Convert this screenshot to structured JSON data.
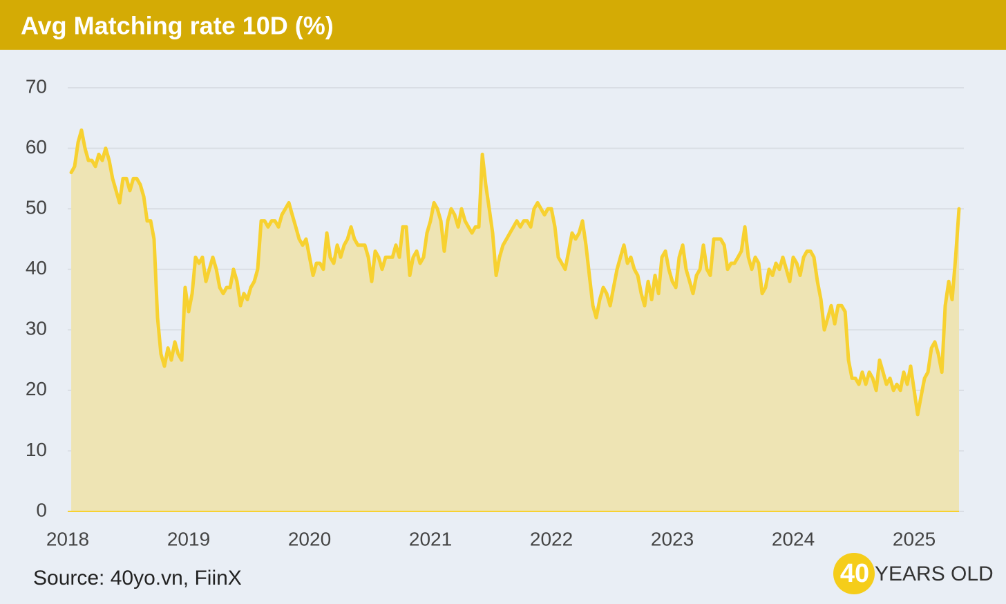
{
  "chart_data": {
    "type": "area",
    "title": "Avg Matching rate 10D (%)",
    "source": "Source: 40yo.vn, FiinX",
    "logo": {
      "number": "40",
      "text": "YEARS OLD"
    },
    "color": "#f7d130",
    "fill_color": "#eee4b4",
    "grid": true,
    "xlim": [
      2018,
      2025.371
    ],
    "xticks": [
      2018,
      2019,
      2020,
      2021,
      2022,
      2023,
      2024,
      2025
    ],
    "ylim": [
      0,
      70
    ],
    "yticks": [
      0,
      10,
      20,
      30,
      40,
      50,
      60,
      70
    ],
    "x": [
      2018.029,
      2018.057,
      2018.086,
      2018.114,
      2018.143,
      2018.171,
      2018.2,
      2018.229,
      2018.257,
      2018.286,
      2018.314,
      2018.343,
      2018.371,
      2018.4,
      2018.429,
      2018.457,
      2018.486,
      2018.514,
      2018.543,
      2018.571,
      2018.6,
      2018.629,
      2018.657,
      2018.686,
      2018.714,
      2018.743,
      2018.771,
      2018.8,
      2018.829,
      2018.857,
      2018.886,
      2018.914,
      2018.943,
      2018.971,
      2019,
      2019.029,
      2019.057,
      2019.086,
      2019.114,
      2019.143,
      2019.171,
      2019.2,
      2019.229,
      2019.257,
      2019.286,
      2019.314,
      2019.343,
      2019.371,
      2019.4,
      2019.429,
      2019.457,
      2019.486,
      2019.514,
      2019.543,
      2019.571,
      2019.6,
      2019.629,
      2019.657,
      2019.686,
      2019.714,
      2019.743,
      2019.771,
      2019.8,
      2019.829,
      2019.857,
      2019.886,
      2019.914,
      2019.943,
      2019.971,
      2020,
      2020.029,
      2020.057,
      2020.086,
      2020.114,
      2020.143,
      2020.171,
      2020.2,
      2020.229,
      2020.257,
      2020.286,
      2020.314,
      2020.343,
      2020.371,
      2020.4,
      2020.429,
      2020.457,
      2020.486,
      2020.514,
      2020.543,
      2020.571,
      2020.6,
      2020.629,
      2020.657,
      2020.686,
      2020.714,
      2020.743,
      2020.771,
      2020.8,
      2020.829,
      2020.857,
      2020.886,
      2020.914,
      2020.943,
      2020.971,
      2021,
      2021.029,
      2021.057,
      2021.086,
      2021.114,
      2021.143,
      2021.171,
      2021.2,
      2021.229,
      2021.257,
      2021.286,
      2021.314,
      2021.343,
      2021.371,
      2021.4,
      2021.429,
      2021.457,
      2021.486,
      2021.514,
      2021.543,
      2021.571,
      2021.6,
      2021.629,
      2021.657,
      2021.686,
      2021.714,
      2021.743,
      2021.771,
      2021.8,
      2021.829,
      2021.857,
      2021.886,
      2021.914,
      2021.943,
      2021.971,
      2022,
      2022.029,
      2022.057,
      2022.086,
      2022.114,
      2022.143,
      2022.171,
      2022.2,
      2022.229,
      2022.257,
      2022.286,
      2022.314,
      2022.343,
      2022.371,
      2022.4,
      2022.429,
      2022.457,
      2022.486,
      2022.514,
      2022.543,
      2022.571,
      2022.6,
      2022.629,
      2022.657,
      2022.686,
      2022.714,
      2022.743,
      2022.771,
      2022.8,
      2022.829,
      2022.857,
      2022.886,
      2022.914,
      2022.943,
      2022.971,
      2023,
      2023.029,
      2023.057,
      2023.086,
      2023.114,
      2023.143,
      2023.171,
      2023.2,
      2023.229,
      2023.257,
      2023.286,
      2023.314,
      2023.343,
      2023.371,
      2023.4,
      2023.429,
      2023.457,
      2023.486,
      2023.514,
      2023.543,
      2023.571,
      2023.6,
      2023.629,
      2023.657,
      2023.686,
      2023.714,
      2023.743,
      2023.771,
      2023.8,
      2023.829,
      2023.857,
      2023.886,
      2023.914,
      2023.943,
      2023.971,
      2024,
      2024.029,
      2024.057,
      2024.086,
      2024.114,
      2024.143,
      2024.171,
      2024.2,
      2024.229,
      2024.257,
      2024.286,
      2024.314,
      2024.343,
      2024.371,
      2024.4,
      2024.429,
      2024.457,
      2024.486,
      2024.514,
      2024.543,
      2024.571,
      2024.6,
      2024.629,
      2024.657,
      2024.686,
      2024.714,
      2024.743,
      2024.771,
      2024.8,
      2024.829,
      2024.857,
      2024.886,
      2024.914,
      2024.943,
      2024.971,
      2025,
      2025.029,
      2025.057,
      2025.086,
      2025.114,
      2025.143,
      2025.171,
      2025.2,
      2025.229,
      2025.257,
      2025.286,
      2025.314,
      2025.343,
      2025.371
    ],
    "values": [
      56,
      57,
      61,
      63,
      60,
      58,
      58,
      57,
      59,
      58,
      60,
      58,
      55,
      53,
      51,
      55,
      55,
      53,
      55,
      55,
      54,
      52,
      48,
      48,
      45,
      32,
      26,
      24,
      27,
      25,
      28,
      26,
      25,
      37,
      33,
      36,
      42,
      41,
      42,
      38,
      40,
      42,
      40,
      37,
      36,
      37,
      37,
      40,
      38,
      34,
      36,
      35,
      37,
      38,
      40,
      48,
      48,
      47,
      48,
      48,
      47,
      49,
      50,
      51,
      49,
      47,
      45,
      44,
      45,
      42,
      39,
      41,
      41,
      40,
      46,
      42,
      41,
      44,
      42,
      44,
      45,
      47,
      45,
      44,
      44,
      44,
      42,
      38,
      43,
      42,
      40,
      42,
      42,
      42,
      44,
      42,
      47,
      47,
      39,
      42,
      43,
      41,
      42,
      46,
      48,
      51,
      50,
      48,
      43,
      48,
      50,
      49,
      47,
      50,
      48,
      47,
      46,
      47,
      47,
      59,
      54,
      50,
      46,
      39,
      42,
      44,
      45,
      46,
      47,
      48,
      47,
      48,
      48,
      47,
      50,
      51,
      50,
      49,
      50,
      50,
      47,
      42,
      41,
      40,
      43,
      46,
      45,
      46,
      48,
      44,
      39,
      34,
      32,
      35,
      37,
      36,
      34,
      37,
      40,
      42,
      44,
      41,
      42,
      40,
      39,
      36,
      34,
      38,
      35,
      39,
      36,
      42,
      43,
      40,
      38,
      37,
      42,
      44,
      40,
      38,
      36,
      39,
      40,
      44,
      40,
      39,
      45,
      45,
      45,
      44,
      40,
      41,
      41,
      42,
      43,
      47,
      42,
      40,
      42,
      41,
      36,
      37,
      40,
      39,
      41,
      40,
      42,
      40,
      38,
      42,
      41,
      39,
      42,
      43,
      43,
      42,
      38,
      35,
      30,
      32,
      34,
      31,
      34,
      34,
      33,
      25,
      22,
      22,
      21,
      23,
      21,
      23,
      22,
      20,
      25,
      23,
      21,
      22,
      20,
      21,
      20,
      23,
      21,
      24,
      20,
      16,
      19,
      22,
      23,
      27,
      28,
      26,
      23,
      34,
      38,
      35,
      42,
      50
    ]
  }
}
